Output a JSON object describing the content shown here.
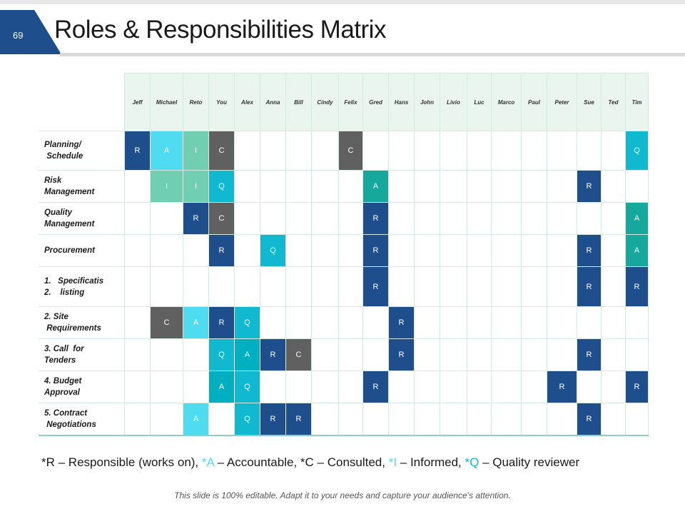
{
  "header": {
    "page_number": "69",
    "title": "Roles & Responsibilities Matrix"
  },
  "colors": {
    "R": "#1f4e8c",
    "A": "#00b0c0",
    "A_light": "#4fdcf0",
    "C": "#606060",
    "I": "#6fcfb0",
    "Q": "#10b8d0",
    "A_teal": "#16a89c"
  },
  "matrix": {
    "people": [
      "Jeff",
      "Michael",
      "Reto",
      "You",
      "Alex",
      "Anna",
      "Bill",
      "Cindy",
      "Felix",
      "Gred",
      "Hans",
      "John",
      "Livio",
      "Luc",
      "Marco",
      "Paul",
      "Peter",
      "Sue",
      "Ted",
      "Tim"
    ],
    "tasks": [
      {
        "label_lines": [
          "Planning/",
          " Schedule"
        ],
        "cells": {
          "0": "R",
          "1": "A",
          "2": "I",
          "3": "C",
          "8": "C",
          "19": "Q"
        }
      },
      {
        "label_lines": [
          "Risk",
          "Management"
        ],
        "cells": {
          "1": "I",
          "2": "I",
          "3": "Q",
          "9": "A",
          "17": "R"
        }
      },
      {
        "label_lines": [
          "Quality",
          "Management"
        ],
        "cells": {
          "2": "R",
          "3": "C",
          "9": "R",
          "19": "A"
        }
      },
      {
        "label_lines": [
          "Procurement"
        ],
        "cells": {
          "3": "R",
          "5": "Q",
          "9": "R",
          "17": "R",
          "19": "A"
        }
      },
      {
        "label_lines": [
          "1.   Specificatis",
          "2.    listing"
        ],
        "cells": {
          "9": "R",
          "17": "R",
          "19": "R"
        }
      },
      {
        "label_lines": [
          "2. Site",
          " Requirements"
        ],
        "cells": {
          "1": "C",
          "2": "A",
          "3": "R",
          "4": "Q",
          "10": "R"
        }
      },
      {
        "label_lines": [
          "3. Call  for",
          "Tenders"
        ],
        "cells": {
          "3": "Q",
          "4": "A",
          "5": "R",
          "6": "C",
          "10": "R",
          "17": "R"
        }
      },
      {
        "label_lines": [
          "4. Budget",
          "Approval"
        ],
        "cells": {
          "3": "A",
          "4": "Q",
          "9": "R",
          "16": "R",
          "19": "R"
        }
      },
      {
        "label_lines": [
          "5. Contract",
          " Negotiations"
        ],
        "cells": {
          "2": "A",
          "4": "Q",
          "5": "R",
          "6": "R",
          "17": "R"
        }
      }
    ]
  },
  "legend": {
    "r_code": "*R",
    "r_text": " – Responsible (works on), ",
    "a_code": "*A",
    "a_text": " – Accountable, ",
    "c_code": "*C",
    "c_text": " – Consulted, ",
    "i_code": "*I",
    "i_text": " – Informed, ",
    "q_code": "*Q",
    "q_text": " – Quality reviewer"
  },
  "footer": {
    "note": "This slide is 100% editable. Adapt it to your needs and capture your audience’s attention."
  }
}
